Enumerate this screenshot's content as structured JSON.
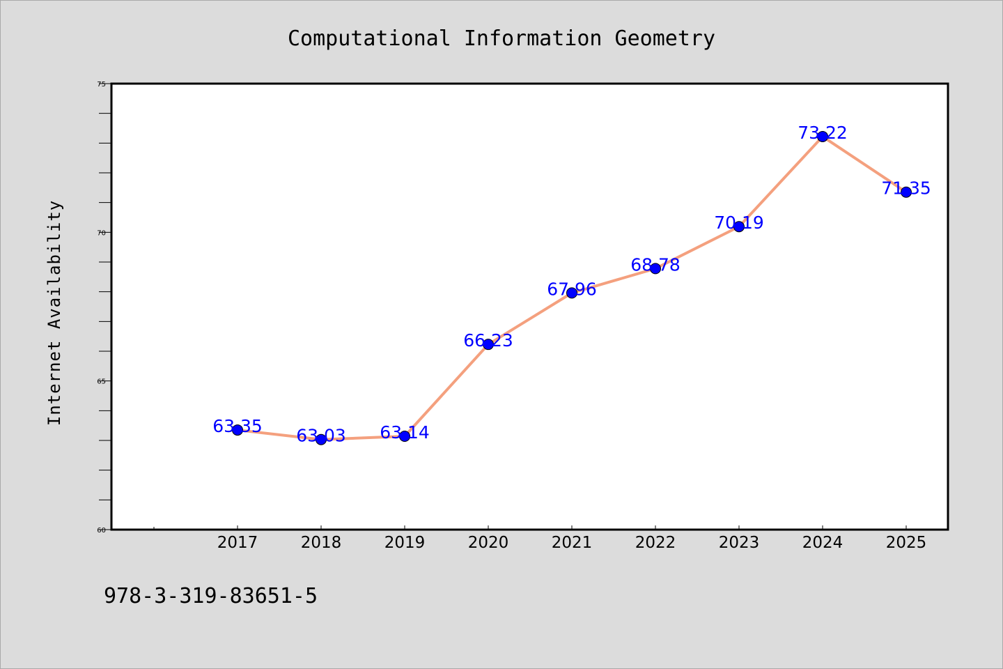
{
  "chart_data": {
    "type": "line",
    "title": "Computational Information Geometry",
    "xlabel": "",
    "ylabel": "Internet Availability",
    "x": [
      "2017",
      "2018",
      "2019",
      "2020",
      "2021",
      "2022",
      "2023",
      "2024",
      "2025"
    ],
    "values": [
      63.35,
      63.03,
      63.14,
      66.23,
      67.96,
      68.78,
      70.19,
      73.22,
      71.35
    ],
    "data_labels": [
      "63.35",
      "63.03",
      "63.14",
      "66.23",
      "67.96",
      "68.78",
      "70.19",
      "73.22",
      "71.35"
    ],
    "ylim": [
      60,
      75
    ],
    "yticks": [
      "60",
      "65",
      "70",
      "75"
    ],
    "grid": false,
    "line_color": "#f4a07e",
    "marker_color": "#0000ff"
  },
  "footer": {
    "isbn": "978-3-319-83651-5"
  },
  "colors": {
    "background": "#dcdcdc",
    "plot_area": "#ffffff",
    "axis": "#000000"
  }
}
